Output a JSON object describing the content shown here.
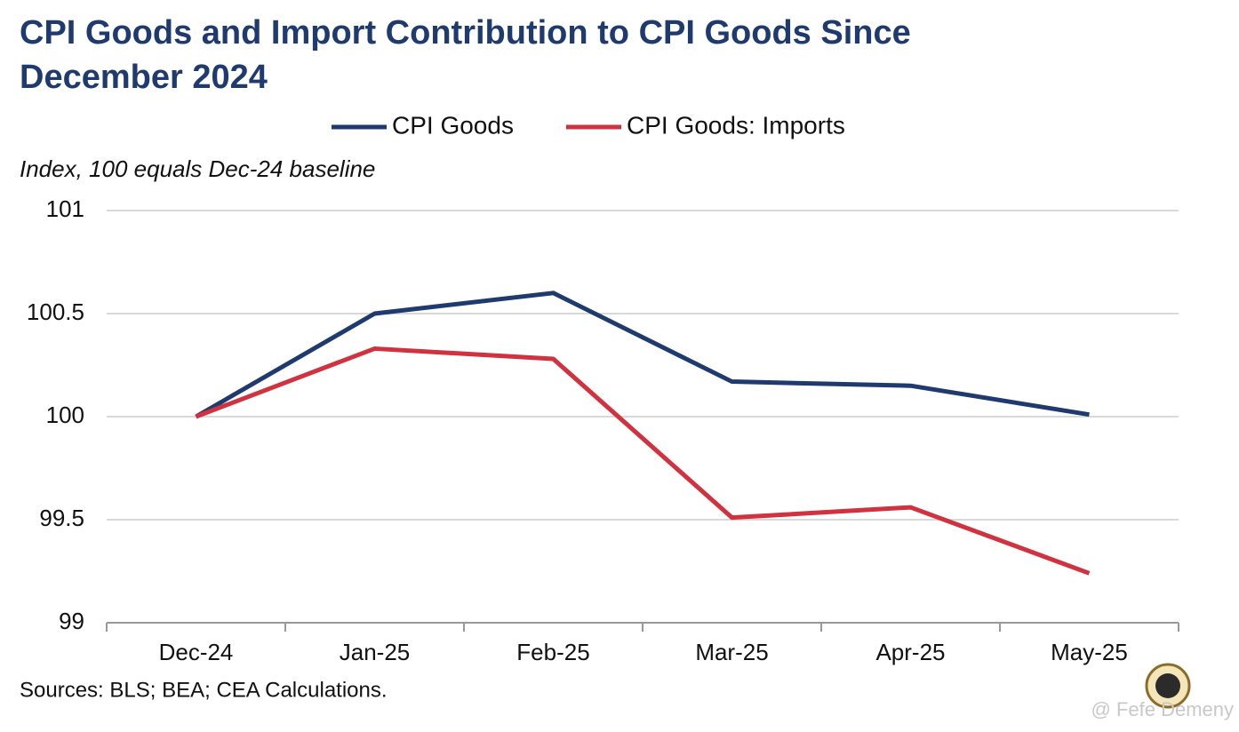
{
  "chart_data": {
    "type": "line",
    "title": "CPI Goods and Import Contribution to CPI Goods Since December 2024",
    "subtitle": "Index, 100 equals Dec-24 baseline",
    "source": "Sources: BLS; BEA; CEA Calculations.",
    "watermark": "@ Fefe Demeny",
    "categories": [
      "Dec-24",
      "Jan-25",
      "Feb-25",
      "Mar-25",
      "Apr-25",
      "May-25"
    ],
    "series": [
      {
        "name": "CPI Goods",
        "color": "#1f3a6e",
        "values": [
          100,
          100.5,
          100.6,
          100.17,
          100.15,
          100.01
        ]
      },
      {
        "name": "CPI Goods: Imports",
        "color": "#d0323f",
        "values": [
          100,
          100.33,
          100.28,
          99.51,
          99.56,
          99.24
        ]
      }
    ],
    "ylim": [
      99,
      101
    ],
    "yticks": [
      99,
      99.5,
      100,
      100.5,
      101
    ],
    "grid": true,
    "legend": "top"
  }
}
